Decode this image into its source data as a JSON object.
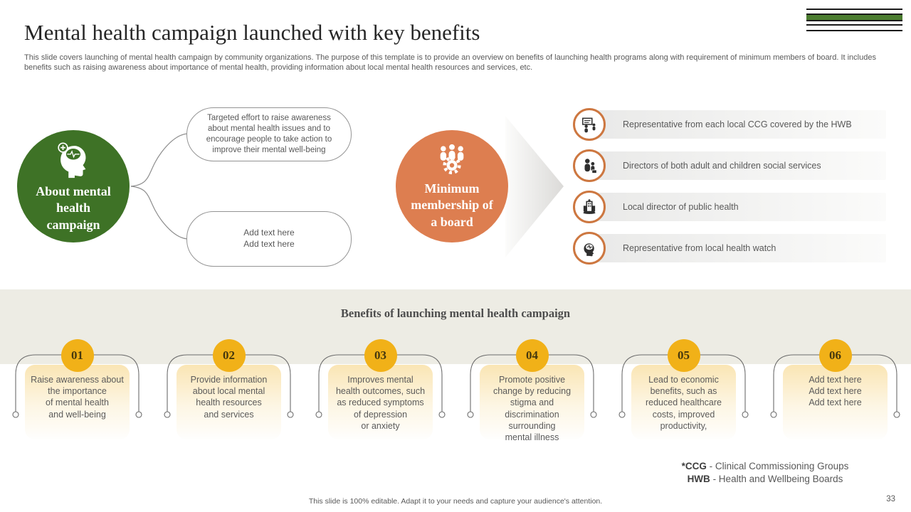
{
  "slide": {
    "title": "Mental health campaign launched with key benefits",
    "subtitle": "This slide covers launching of mental health campaign by community organizations. The purpose of this template is to provide an overview on benefits of launching health programs along with requirement of minimum members of board. It includes benefits such as raising awareness about importance of mental health, providing information about local mental health resources and services, etc.",
    "page_number": "33",
    "footer_note": "This slide is 100% editable.  Adapt it to your needs and capture your audience's attention."
  },
  "colors": {
    "green": "#3e7226",
    "orange": "#dd7e50",
    "yellow": "#f1b118",
    "band_beige": "#edece4",
    "icon_ring_orange": "#cd7740"
  },
  "diagram": {
    "green_circle": {
      "icon": "head-brain-plus-icon",
      "label": "About mental health campaign"
    },
    "bubble_top": {
      "text": "Targeted effort to raise awareness about mental health issues and to encourage people to take action to improve their mental well-being"
    },
    "bubble_bottom": {
      "lines": [
        "Add text here",
        "Add text here"
      ]
    },
    "orange_circle": {
      "icon": "team-gear-icon",
      "label": "Minimum membership of a board"
    },
    "members": [
      {
        "icon": "presentation-people-icon",
        "text": "Representative  from each local CCG  covered  by the HWB"
      },
      {
        "icon": "social-services-people-icon",
        "text": "Directors  of both adult and  children social services"
      },
      {
        "icon": "public-health-building-icon",
        "text": "Local director  of public health"
      },
      {
        "icon": "mind-head-icon",
        "text": "Representative  from local health watch"
      }
    ]
  },
  "benefits": {
    "heading": "Benefits of launching mental health campaign",
    "items": [
      {
        "number": "01",
        "lines": [
          "Raise awareness about",
          "the importance",
          "of mental health",
          "and well-being"
        ]
      },
      {
        "number": "02",
        "lines": [
          "Provide  information",
          "about local mental",
          "health  resources",
          "and services"
        ]
      },
      {
        "number": "03",
        "lines": [
          "Improves  mental",
          "health  outcomes, such",
          "as reduced  symptoms",
          "of depression",
          "or anxiety"
        ]
      },
      {
        "number": "04",
        "lines": [
          "Promote positive",
          "change by reducing",
          "stigma and",
          "discrimination",
          "surrounding",
          "mental illness"
        ]
      },
      {
        "number": "05",
        "lines": [
          "Lead to economic",
          "benefits,  such as",
          "reduced healthcare",
          "costs, improved",
          "productivity,"
        ]
      },
      {
        "number": "06",
        "lines": [
          "Add text here",
          "Add text here",
          "Add text here"
        ]
      }
    ]
  },
  "footnotes": [
    {
      "bold": "*CCG",
      "rest": " - Clinical  Commissioning Groups"
    },
    {
      "bold": "HWB",
      "rest": " - Health  and Wellbeing  Boards"
    }
  ]
}
